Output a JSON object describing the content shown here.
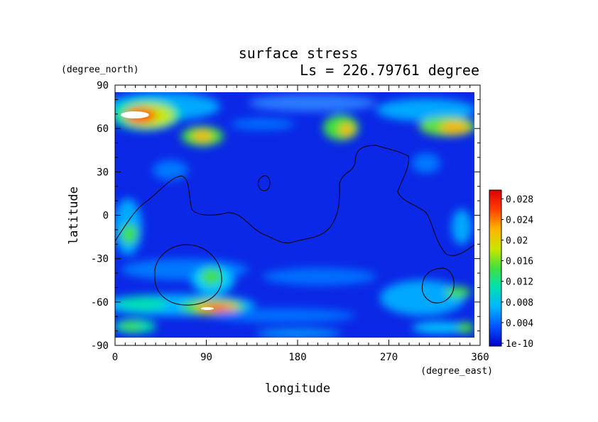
{
  "chart_data": {
    "type": "heatmap",
    "title": "surface stress",
    "subtitle": "Ls = 226.79761 degree",
    "xlabel": "longitude",
    "ylabel": "latitude",
    "x_unit": "(degree_east)",
    "y_unit": "(degree_north)",
    "xlim": [
      0,
      360
    ],
    "ylim": [
      -90,
      90
    ],
    "x_ticks": [
      0,
      90,
      180,
      270,
      360
    ],
    "y_ticks": [
      90,
      60,
      30,
      0,
      -30,
      -60,
      -90
    ],
    "colorbar": {
      "labels": [
        "1e-10",
        "0.004",
        "0.008",
        "0.012",
        "0.016",
        "0.02",
        "0.024",
        "0.028"
      ],
      "range": [
        0,
        0.03
      ],
      "colormap": [
        "#0000cd",
        "#0050ff",
        "#00b4ff",
        "#00e0b0",
        "#40e040",
        "#c8e600",
        "#ffb400",
        "#ff3c00",
        "#e00000"
      ]
    },
    "field_features": [
      {
        "lon": 20,
        "lat": 70,
        "value": 0.03,
        "note": "peak (white)"
      },
      {
        "lon": 50,
        "lat": 68,
        "value": 0.018
      },
      {
        "lon": 85,
        "lat": 56,
        "value": 0.018
      },
      {
        "lon": 230,
        "lat": 62,
        "value": 0.018
      },
      {
        "lon": 340,
        "lat": 62,
        "value": 0.016
      },
      {
        "lon": 90,
        "lat": -64,
        "value": 0.03,
        "note": "peak (white)"
      },
      {
        "lon": 110,
        "lat": -63,
        "value": 0.024
      },
      {
        "lon": 100,
        "lat": -42,
        "value": 0.016
      },
      {
        "lon": 15,
        "lat": -75,
        "value": 0.012
      },
      {
        "lon": 330,
        "lat": -50,
        "value": 0.01
      },
      {
        "lon": 5,
        "lat": -5,
        "value": 0.012
      }
    ]
  }
}
